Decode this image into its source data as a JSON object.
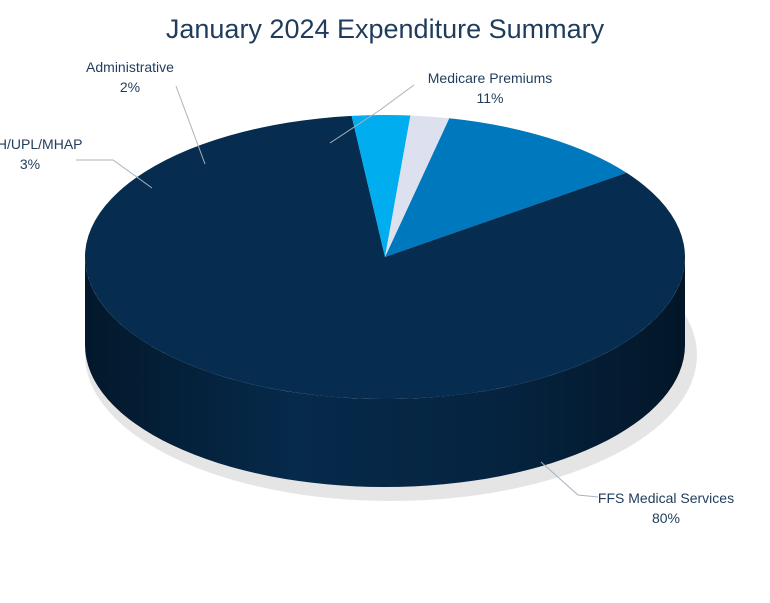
{
  "chart_data": {
    "type": "pie",
    "title": "January 2024 Expenditure Summary",
    "series": [
      {
        "labels": [
          "FFS Medical Services",
          "DSH/UPL/MHAP",
          "Administrative",
          "Medicare Premiums"
        ],
        "values": [
          80,
          3,
          2,
          11
        ],
        "value_labels": [
          "80%",
          "3%",
          "2%",
          "11%"
        ],
        "colors": [
          "#062c4f",
          "#00adef",
          "#dde1ef",
          "#0078bd"
        ]
      }
    ],
    "legend": "none",
    "three_d": true
  }
}
